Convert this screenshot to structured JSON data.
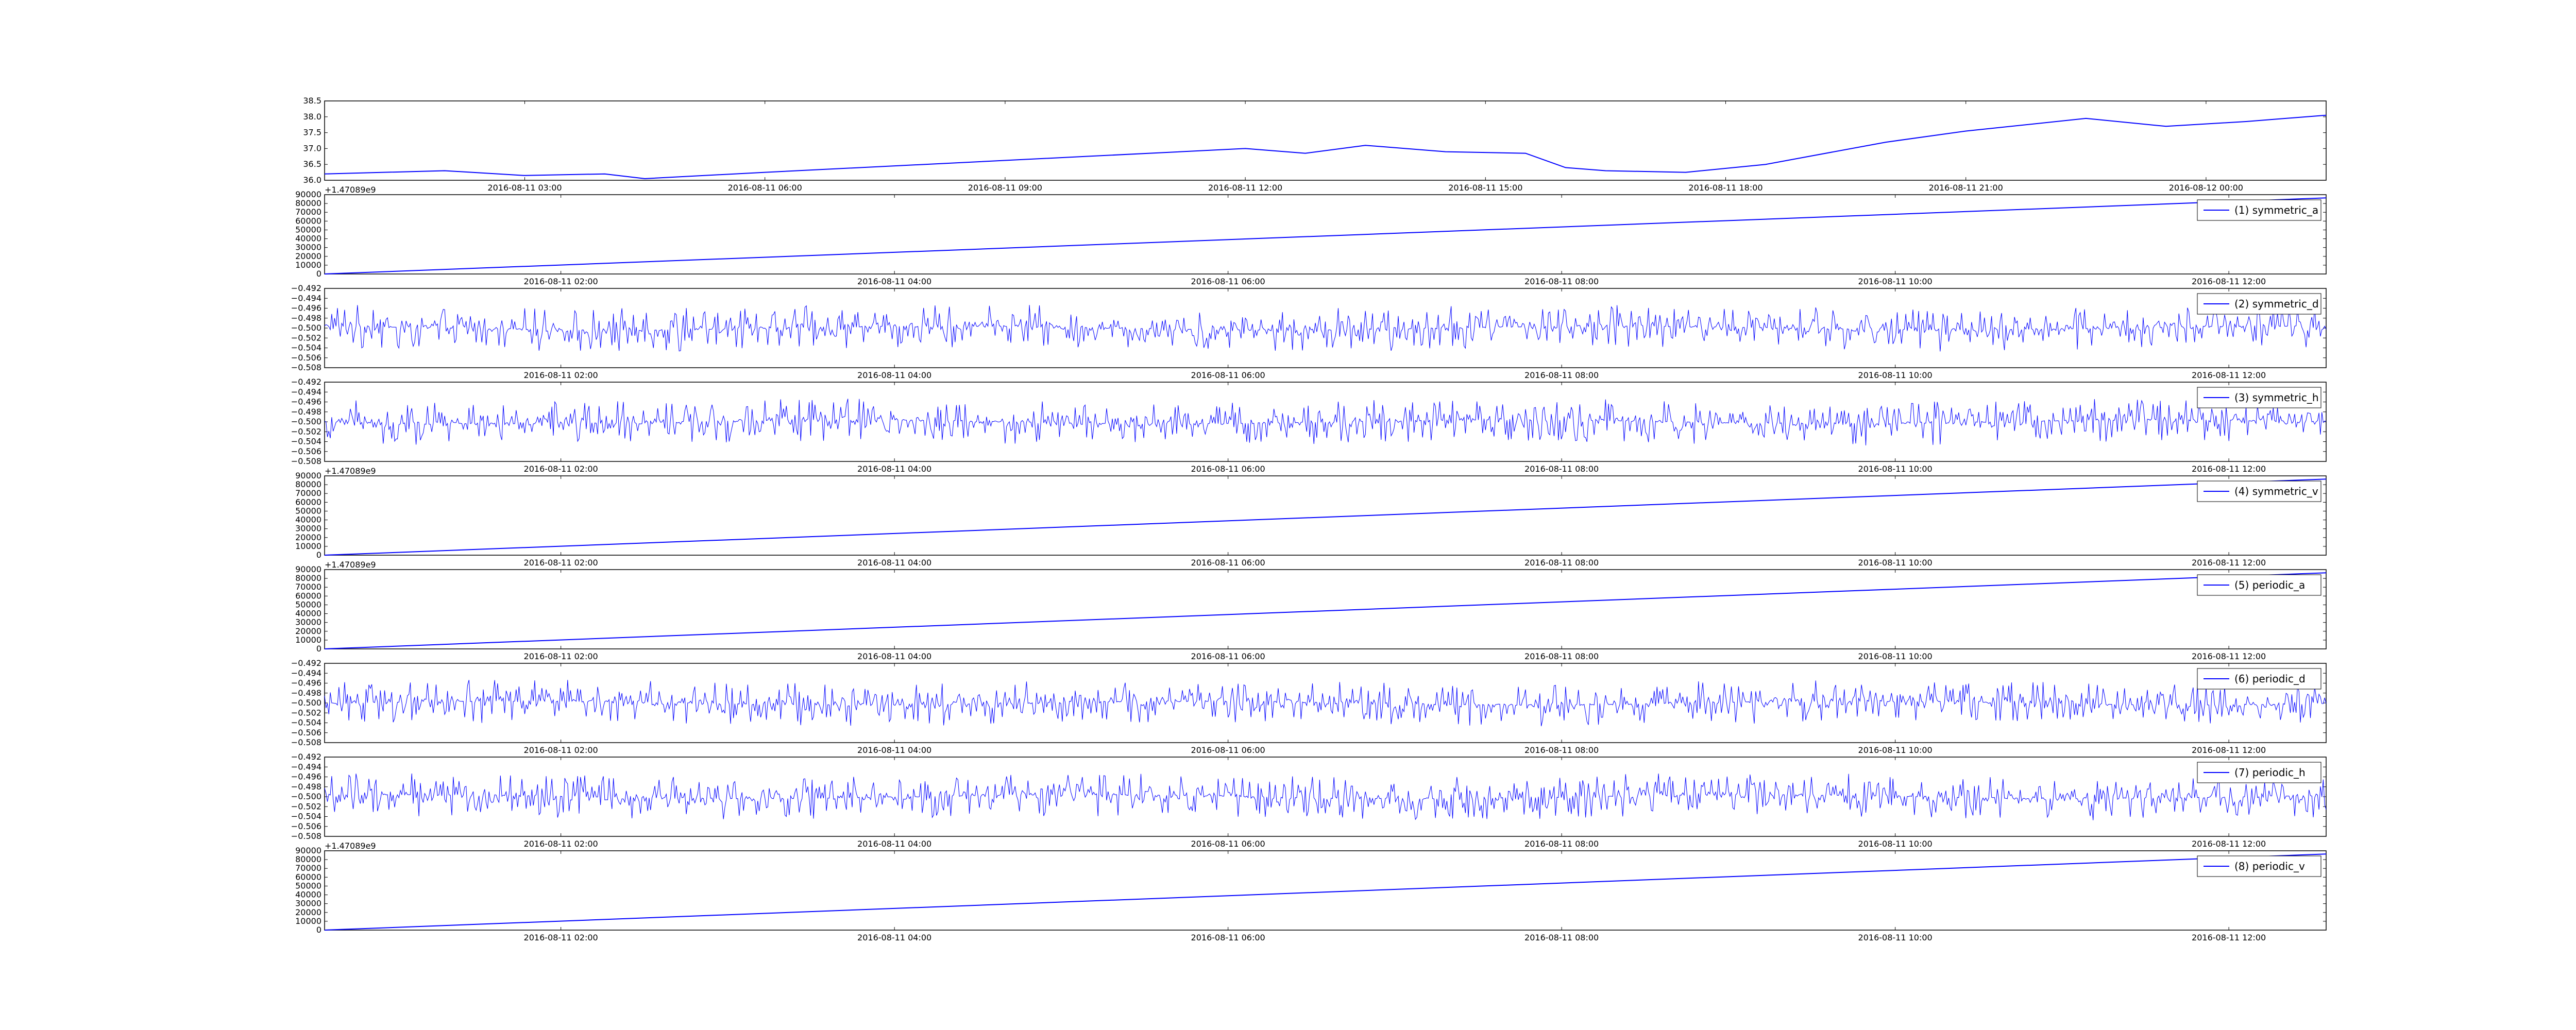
{
  "line_color": "#0000ff",
  "chart_data": [
    {
      "type": "line",
      "name": "",
      "ylim": [
        36.0,
        38.5
      ],
      "yticks": [
        "36.0",
        "36.5",
        "37.0",
        "37.5",
        "38.0",
        "38.5"
      ],
      "xticks": [
        "2016-08-11 03:00",
        "2016-08-11 06:00",
        "2016-08-11 09:00",
        "2016-08-11 12:00",
        "2016-08-11 15:00",
        "2016-08-11 18:00",
        "2016-08-11 21:00",
        "2016-08-12 00:00"
      ],
      "x": [
        "2016-08-11 00:30",
        "2016-08-11 02:00",
        "2016-08-11 03:00",
        "2016-08-11 04:00",
        "2016-08-11 04:30",
        "2016-08-11 06:00",
        "2016-08-11 08:00",
        "2016-08-11 10:00",
        "2016-08-11 12:00",
        "2016-08-11 12:45",
        "2016-08-11 13:30",
        "2016-08-11 14:30",
        "2016-08-11 15:30",
        "2016-08-11 16:00",
        "2016-08-11 16:30",
        "2016-08-11 17:30",
        "2016-08-11 18:30",
        "2016-08-11 20:00",
        "2016-08-11 21:00",
        "2016-08-11 22:30",
        "2016-08-11 23:30",
        "2016-08-12 00:30",
        "2016-08-12 01:30"
      ],
      "values": [
        36.2,
        36.3,
        36.15,
        36.2,
        36.05,
        36.25,
        36.5,
        36.75,
        37.0,
        36.85,
        37.1,
        36.9,
        36.85,
        36.4,
        36.3,
        36.25,
        36.5,
        37.2,
        37.55,
        37.95,
        37.7,
        37.85,
        38.05
      ],
      "legend": ""
    },
    {
      "type": "line",
      "name": "symmetric_a",
      "legend": "(1) symmetric_a",
      "offset": "+1.47089e9",
      "ylim": [
        0,
        90000
      ],
      "yticks": [
        "0",
        "10000",
        "20000",
        "30000",
        "40000",
        "50000",
        "60000",
        "70000",
        "80000",
        "90000"
      ],
      "xticks": [
        "2016-08-11 02:00",
        "2016-08-11 04:00",
        "2016-08-11 06:00",
        "2016-08-11 08:00",
        "2016-08-11 10:00",
        "2016-08-11 12:00"
      ],
      "x": [
        "2016-08-11 00:35",
        "2016-08-11 12:35"
      ],
      "values": [
        0,
        86400
      ]
    },
    {
      "type": "line",
      "name": "symmetric_d",
      "legend": "(2) symmetric_d",
      "ylim": [
        -0.508,
        -0.492
      ],
      "yticks": [
        "−0.508",
        "−0.506",
        "−0.504",
        "−0.502",
        "−0.500",
        "−0.498",
        "−0.496",
        "−0.494",
        "−0.492"
      ],
      "xticks": [
        "2016-08-11 02:00",
        "2016-08-11 04:00",
        "2016-08-11 06:00",
        "2016-08-11 08:00",
        "2016-08-11 10:00",
        "2016-08-11 12:00"
      ],
      "center": -0.5,
      "amplitude": 0.004
    },
    {
      "type": "line",
      "name": "symmetric_h",
      "legend": "(3) symmetric_h",
      "ylim": [
        -0.508,
        -0.492
      ],
      "yticks": [
        "−0.508",
        "−0.506",
        "−0.504",
        "−0.502",
        "−0.500",
        "−0.498",
        "−0.496",
        "−0.494",
        "−0.492"
      ],
      "xticks": [
        "2016-08-11 02:00",
        "2016-08-11 04:00",
        "2016-08-11 06:00",
        "2016-08-11 08:00",
        "2016-08-11 10:00",
        "2016-08-11 12:00"
      ],
      "center": -0.5,
      "amplitude": 0.004
    },
    {
      "type": "line",
      "name": "symmetric_v",
      "legend": "(4) symmetric_v",
      "offset": "+1.47089e9",
      "ylim": [
        0,
        90000
      ],
      "yticks": [
        "0",
        "10000",
        "20000",
        "30000",
        "40000",
        "50000",
        "60000",
        "70000",
        "80000",
        "90000"
      ],
      "xticks": [
        "2016-08-11 02:00",
        "2016-08-11 04:00",
        "2016-08-11 06:00",
        "2016-08-11 08:00",
        "2016-08-11 10:00",
        "2016-08-11 12:00"
      ],
      "x": [
        "2016-08-11 00:35",
        "2016-08-11 12:35"
      ],
      "values": [
        0,
        86400
      ]
    },
    {
      "type": "line",
      "name": "periodic_a",
      "legend": "(5) periodic_a",
      "offset": "+1.47089e9",
      "ylim": [
        0,
        90000
      ],
      "yticks": [
        "0",
        "10000",
        "20000",
        "30000",
        "40000",
        "50000",
        "60000",
        "70000",
        "80000",
        "90000"
      ],
      "xticks": [
        "2016-08-11 02:00",
        "2016-08-11 04:00",
        "2016-08-11 06:00",
        "2016-08-11 08:00",
        "2016-08-11 10:00",
        "2016-08-11 12:00"
      ],
      "x": [
        "2016-08-11 00:35",
        "2016-08-11 12:35"
      ],
      "values": [
        0,
        86400
      ]
    },
    {
      "type": "line",
      "name": "periodic_d",
      "legend": "(6) periodic_d",
      "ylim": [
        -0.508,
        -0.492
      ],
      "yticks": [
        "−0.508",
        "−0.506",
        "−0.504",
        "−0.502",
        "−0.500",
        "−0.498",
        "−0.496",
        "−0.494",
        "−0.492"
      ],
      "xticks": [
        "2016-08-11 02:00",
        "2016-08-11 04:00",
        "2016-08-11 06:00",
        "2016-08-11 08:00",
        "2016-08-11 10:00",
        "2016-08-11 12:00"
      ],
      "center": -0.5,
      "amplitude": 0.004
    },
    {
      "type": "line",
      "name": "periodic_h",
      "legend": "(7) periodic_h",
      "ylim": [
        -0.508,
        -0.492
      ],
      "yticks": [
        "−0.508",
        "−0.506",
        "−0.504",
        "−0.502",
        "−0.500",
        "−0.498",
        "−0.496",
        "−0.494",
        "−0.492"
      ],
      "xticks": [
        "2016-08-11 02:00",
        "2016-08-11 04:00",
        "2016-08-11 06:00",
        "2016-08-11 08:00",
        "2016-08-11 10:00",
        "2016-08-11 12:00"
      ],
      "center": -0.5,
      "amplitude": 0.004
    },
    {
      "type": "line",
      "name": "periodic_v",
      "legend": "(8) periodic_v",
      "offset": "+1.47089e9",
      "ylim": [
        0,
        90000
      ],
      "yticks": [
        "0",
        "10000",
        "20000",
        "30000",
        "40000",
        "50000",
        "60000",
        "70000",
        "80000",
        "90000"
      ],
      "xticks": [
        "2016-08-11 02:00",
        "2016-08-11 04:00",
        "2016-08-11 06:00",
        "2016-08-11 08:00",
        "2016-08-11 10:00",
        "2016-08-11 12:00"
      ],
      "x": [
        "2016-08-11 00:35",
        "2016-08-11 12:35"
      ],
      "values": [
        0,
        86400
      ]
    }
  ]
}
